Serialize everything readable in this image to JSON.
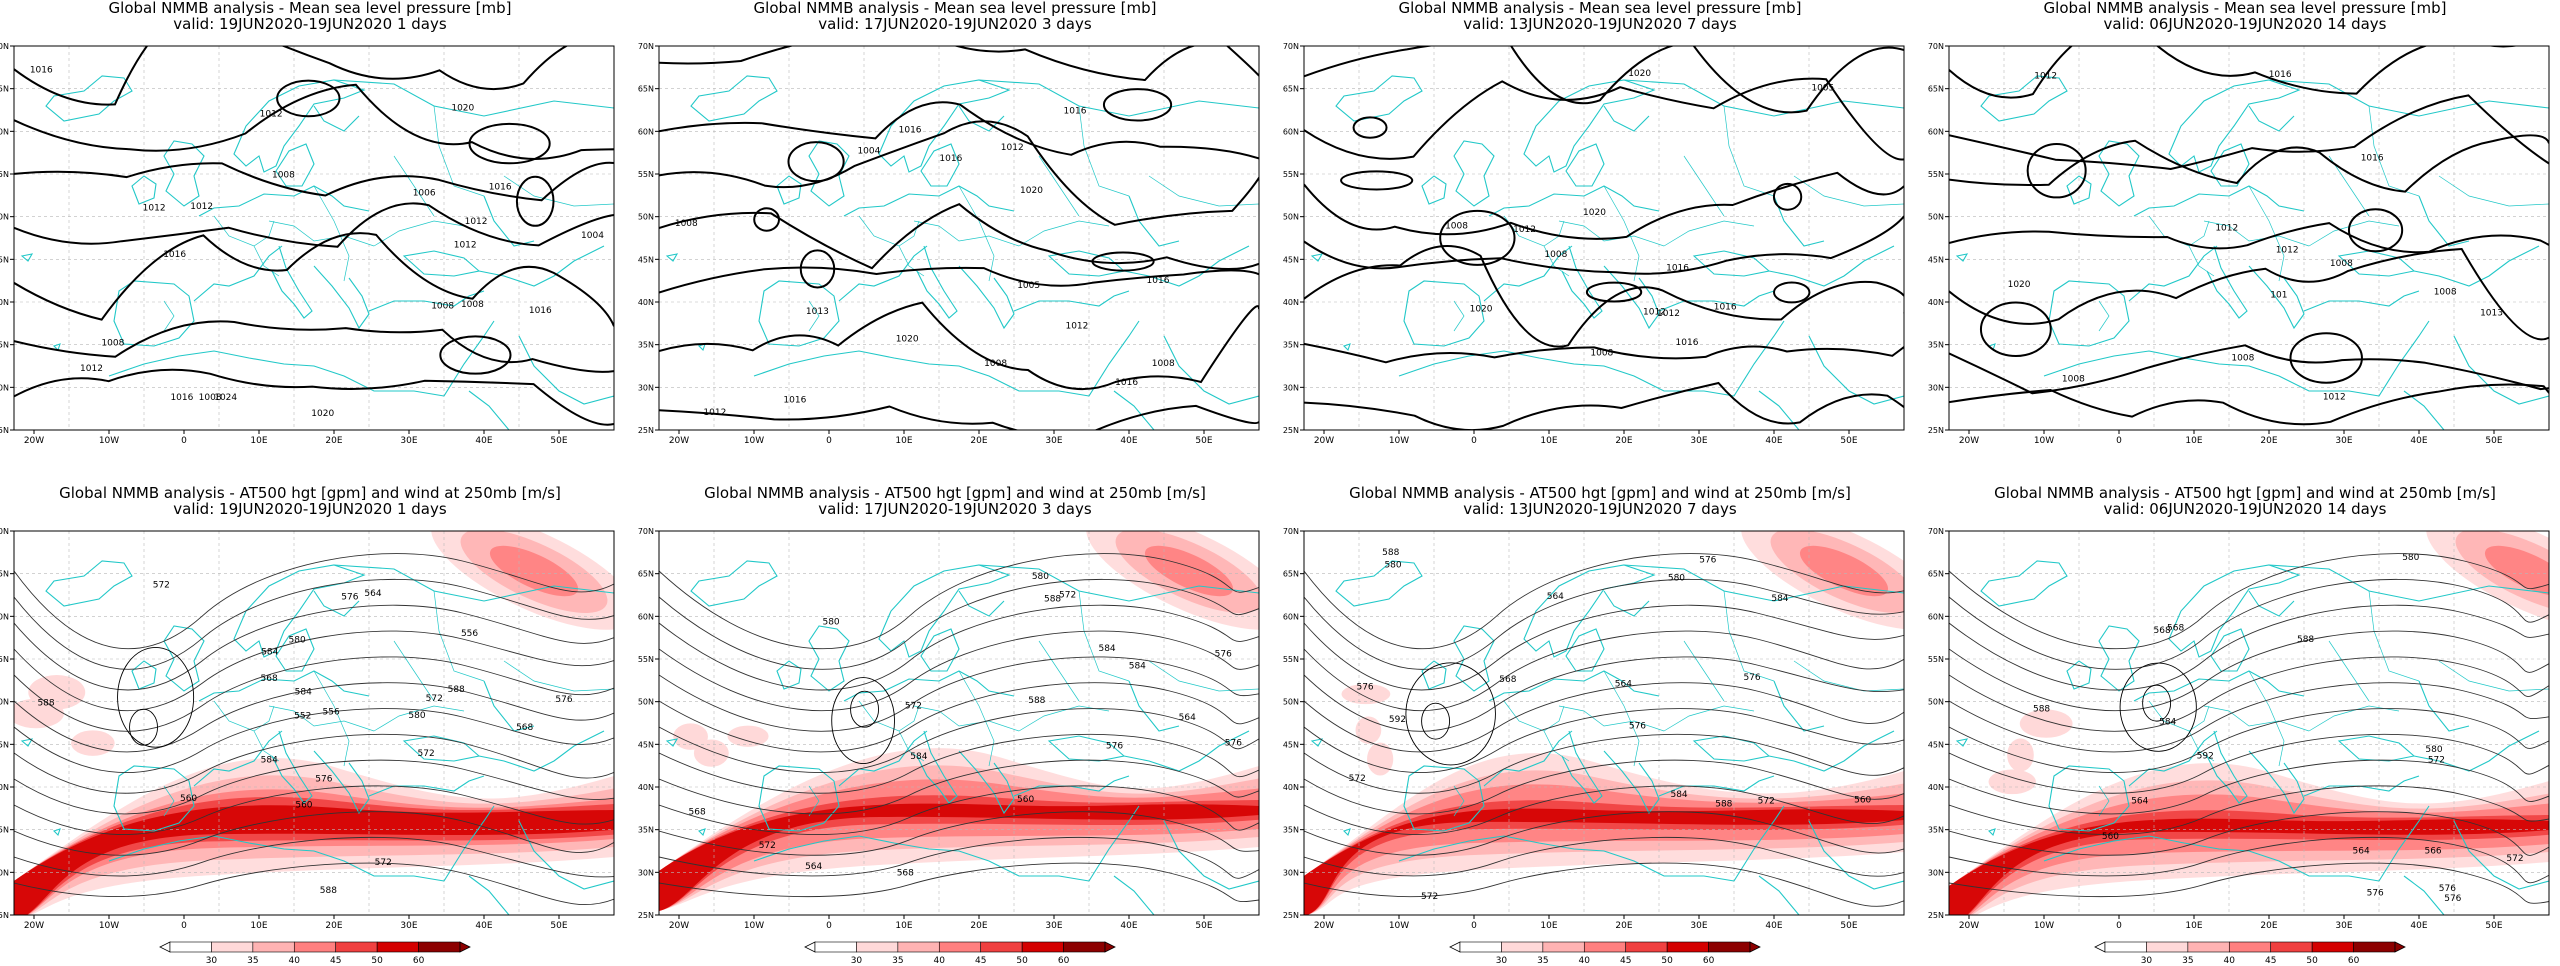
{
  "panels": [
    {
      "row": 0,
      "title": "Global NMMB analysis - Mean sea level pressure [mb]",
      "valid": "valid: 19JUN2020-19JUN2020   1 days",
      "contour_labels": [
        "1016",
        "1024",
        "1020",
        "1016",
        "1012",
        "1008",
        "1012",
        "1012",
        "1016",
        "1020",
        "1016",
        "1012",
        "1008",
        "1004",
        "1008",
        "1012",
        "1016",
        "1008",
        "1006",
        "1012",
        "1008"
      ]
    },
    {
      "row": 0,
      "title": "Global NMMB analysis - Mean sea level pressure [mb]",
      "valid": "valid: 17JUN2020-19JUN2020   3 days",
      "contour_labels": [
        "1020",
        "1016",
        "1016",
        "1013",
        "1012",
        "1016",
        "1016",
        "1012",
        "1008",
        "1008",
        "1004",
        "1008",
        "1012",
        "1020",
        "1016",
        "1005",
        "1016"
      ]
    },
    {
      "row": 0,
      "title": "Global NMMB analysis - Mean sea level pressure [mb]",
      "valid": "valid: 13JUN2020-19JUN2020   7 days",
      "contour_labels": [
        "1020",
        "1020",
        "1016",
        "1012",
        "1012",
        "1016",
        "1008",
        "1005",
        "1016",
        "1012",
        "1008",
        "1008",
        "1020"
      ]
    },
    {
      "row": 0,
      "title": "Global NMMB analysis - Mean sea level pressure [mb]",
      "valid": "valid: 06JUN2020-19JUN2020   14 days",
      "contour_labels": [
        "1016",
        "101",
        "1020",
        "1013",
        "1012",
        "1016",
        "1012",
        "1008",
        "1012",
        "1008",
        "1008",
        "1012",
        "1008"
      ]
    },
    {
      "row": 1,
      "title": "Global NMMB analysis - AT500 hgt [gpm] and wind at 250mb [m/s]",
      "valid": "valid: 19JUN2020-19JUN2020   1 days",
      "contour_labels": [
        "568",
        "572",
        "556",
        "560",
        "576",
        "552",
        "556",
        "560",
        "568",
        "572",
        "576",
        "580",
        "584",
        "588",
        "564",
        "572",
        "572",
        "576",
        "580",
        "584",
        "588",
        "584",
        "588"
      ]
    },
    {
      "row": 1,
      "title": "Global NMMB analysis - AT500 hgt [gpm] and wind at 250mb [m/s]",
      "valid": "valid: 17JUN2020-19JUN2020   3 days",
      "contour_labels": [
        "568",
        "572",
        "576",
        "560",
        "564",
        "568",
        "572",
        "576",
        "580",
        "584",
        "588",
        "564",
        "576",
        "572",
        "580",
        "584",
        "588",
        "584"
      ]
    },
    {
      "row": 1,
      "title": "Global NMMB analysis - AT500 hgt [gpm] and wind at 250mb [m/s]",
      "valid": "valid: 13JUN2020-19JUN2020   7 days",
      "contour_labels": [
        "572",
        "576",
        "564",
        "560",
        "564",
        "568",
        "572",
        "576",
        "580",
        "584",
        "588",
        "592",
        "576",
        "572",
        "576",
        "580",
        "584",
        "588"
      ]
    },
    {
      "row": 1,
      "title": "Global NMMB analysis - AT500 hgt [gpm] and wind at 250mb [m/s]",
      "valid": "valid: 06JUN2020-19JUN2020   14 days",
      "contour_labels": [
        "568",
        "572",
        "576",
        "564",
        "566",
        "560",
        "564",
        "568",
        "572",
        "576",
        "580",
        "584",
        "588",
        "592",
        "576",
        "580",
        "588"
      ]
    }
  ],
  "axes": {
    "lon_ticks": [
      "20W",
      "10W",
      "0",
      "10E",
      "20E",
      "30E",
      "40E",
      "50E"
    ],
    "lat_ticks": [
      "25N",
      "30N",
      "35N",
      "40N",
      "45N",
      "50N",
      "55N",
      "60N",
      "65N",
      "70N"
    ]
  },
  "colorbar": {
    "ticks": [
      "30",
      "35",
      "40",
      "45",
      "50",
      "60"
    ],
    "colors": [
      "#ffffff",
      "#ffd9d9",
      "#ffb3b3",
      "#ff8080",
      "#f04040",
      "#d40000",
      "#8c0000"
    ]
  },
  "colors": {
    "coast": "#22c8c8",
    "contour": "#000000",
    "grid": "#b8b8b8"
  }
}
